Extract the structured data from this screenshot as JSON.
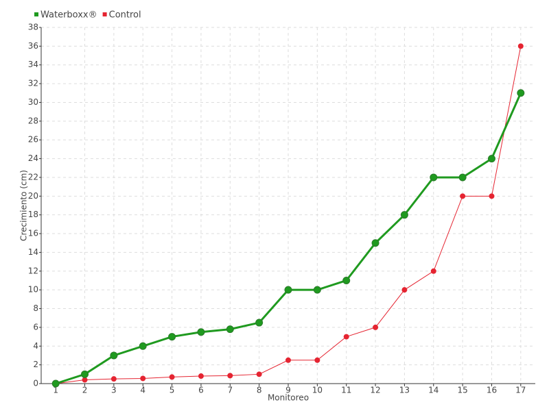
{
  "chart_data": {
    "type": "line",
    "x_label": "Monitoreo",
    "y_label": "Crecimiento (cm)",
    "categories": [
      "1",
      "2",
      "3",
      "4",
      "5",
      "6",
      "7",
      "8",
      "9",
      "10",
      "11",
      "12",
      "13",
      "14",
      "15",
      "16",
      "17"
    ],
    "series": [
      {
        "name": "Waterboxx®",
        "color": "#1f9a1f",
        "values": [
          0,
          1,
          3,
          4,
          5,
          5.5,
          5.8,
          6.5,
          10,
          10,
          11,
          15,
          18,
          22,
          22,
          24,
          31
        ]
      },
      {
        "name": "Control",
        "color": "#e52431",
        "values": [
          0,
          0.4,
          0.5,
          0.55,
          0.7,
          0.8,
          0.85,
          1,
          2.5,
          2.5,
          5,
          6,
          10,
          12,
          20,
          20,
          36
        ]
      }
    ],
    "ylim": [
      0,
      38
    ],
    "yticks": [
      0,
      2,
      4,
      6,
      8,
      10,
      12,
      14,
      16,
      18,
      20,
      22,
      24,
      26,
      28,
      30,
      32,
      34,
      36,
      38
    ],
    "grid": true,
    "legend": "top-left"
  }
}
